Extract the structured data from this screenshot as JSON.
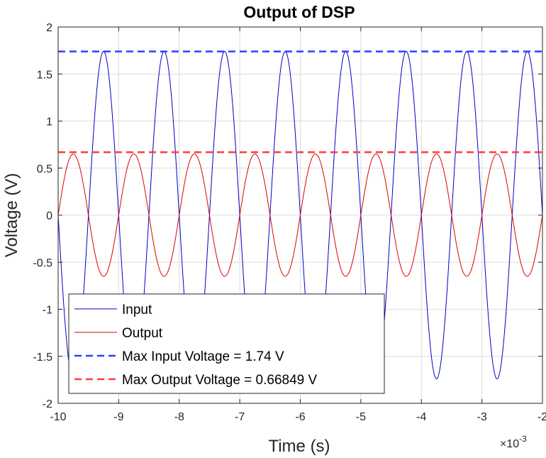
{
  "chart_data": {
    "type": "line",
    "title": "Output of DSP",
    "xlabel": "Time (s)",
    "ylabel": "Voltage (V)",
    "x_exponent_base": "×10",
    "x_exponent_power": "-3",
    "xlim": [
      -10,
      -2
    ],
    "ylim": [
      -2,
      2
    ],
    "xticks": [
      -10,
      -9,
      -8,
      -7,
      -6,
      -5,
      -4,
      -3,
      -2
    ],
    "yticks": [
      -2,
      -1.5,
      -1,
      -0.5,
      0,
      0.5,
      1,
      1.5,
      2
    ],
    "grid": true,
    "legend_position": "bottom-left",
    "series": [
      {
        "name": "Input",
        "style": "solid",
        "color": "#0000cc",
        "kind": "sine",
        "amplitude": 1.74,
        "period_ms": 1.0,
        "peak_at_ms": -9.25
      },
      {
        "name": "Output",
        "style": "solid",
        "color": "#dd0000",
        "kind": "sine",
        "amplitude": 0.65,
        "period_ms": 1.0,
        "peak_at_ms": -9.75
      },
      {
        "name": "Max Input Voltage = 1.74 V",
        "style": "dashed",
        "color": "#2f3fff",
        "kind": "hline",
        "value": 1.74
      },
      {
        "name": "Max Output Voltage = 0.66849 V",
        "style": "dashed",
        "color": "#ff3c3c",
        "kind": "hline",
        "value": 0.66849
      }
    ]
  }
}
